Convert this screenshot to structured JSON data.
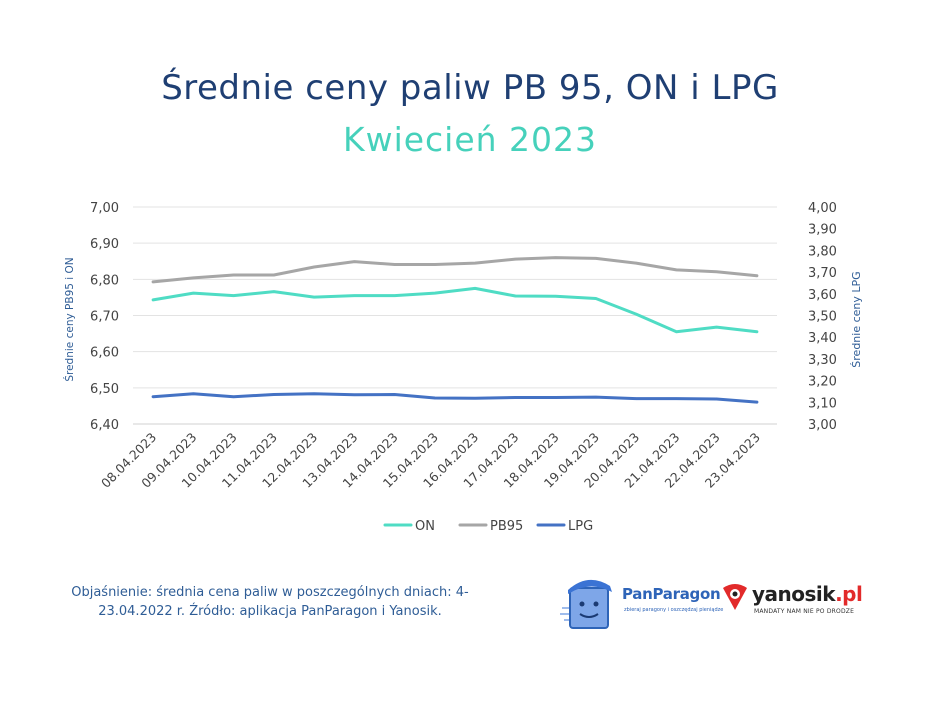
{
  "title": "Średnie ceny paliw PB 95, ON i LPG",
  "subtitle": "Kwiecień 2023",
  "note": "Objaśnienie: średnia cena paliw w poszczególnych dniach: 4-23.04.2022 r. Źródło: aplikacja PanParagon i Yanosik.",
  "logos": {
    "panparagon": {
      "name": "PanParagon",
      "tagline": "zbieraj paragony i oszczędzaj pieniądze"
    },
    "yanosik": {
      "name": "yanosik",
      "suffix": ".pl",
      "tagline": "MANDATY NAM NIE PO DRODZE"
    }
  },
  "chart_data": {
    "type": "line",
    "categories": [
      "08.04.2023",
      "09.04.2023",
      "10.04.2023",
      "11.04.2023",
      "12.04.2023",
      "13.04.2023",
      "14.04.2023",
      "15.04.2023",
      "16.04.2023",
      "17.04.2023",
      "18.04.2023",
      "19.04.2023",
      "20.04.2023",
      "21.04.2023",
      "22.04.2023",
      "23.04.2023"
    ],
    "series": [
      {
        "name": "ON",
        "axis": "left",
        "color": "#4fdcc4",
        "values": [
          6.743,
          6.762,
          6.755,
          6.766,
          6.751,
          6.755,
          6.755,
          6.762,
          6.775,
          6.754,
          6.753,
          6.747,
          6.704,
          6.655,
          6.668,
          6.655
        ]
      },
      {
        "name": "PB95",
        "axis": "left",
        "color": "#a6a6a6",
        "values": [
          6.793,
          6.804,
          6.812,
          6.812,
          6.834,
          6.849,
          6.841,
          6.841,
          6.845,
          6.856,
          6.86,
          6.858,
          6.845,
          6.826,
          6.821,
          6.81
        ]
      },
      {
        "name": "LPG",
        "axis": "right",
        "color": "#4472c4",
        "values": [
          3.126,
          3.139,
          3.126,
          3.136,
          3.139,
          3.135,
          3.136,
          3.12,
          3.119,
          3.122,
          3.122,
          3.124,
          3.117,
          3.117,
          3.115,
          3.101
        ]
      }
    ],
    "y_left": {
      "label": "Średnie ceny PB95 i ON",
      "min": 6.4,
      "max": 7.0,
      "ticks": [
        "6,40",
        "6,50",
        "6,60",
        "6,70",
        "6,80",
        "6,90",
        "7,00"
      ]
    },
    "y_right": {
      "label": "Średnie ceny LPG",
      "min": 3.0,
      "max": 4.0,
      "ticks": [
        "3,00",
        "3,10",
        "3,20",
        "3,30",
        "3,40",
        "3,50",
        "3,60",
        "3,70",
        "3,80",
        "3,90",
        "4,00"
      ]
    },
    "grid": true,
    "legend": {
      "position": "bottom",
      "entries": [
        "ON",
        "PB95",
        "LPG"
      ]
    }
  }
}
